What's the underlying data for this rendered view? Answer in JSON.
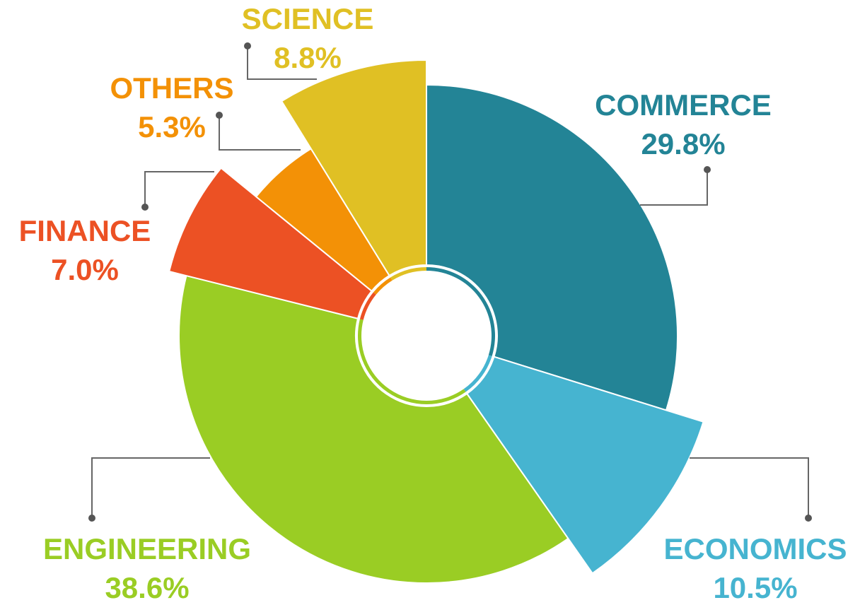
{
  "chart_data": {
    "type": "pie",
    "categories": [
      "COMMERCE",
      "ECONOMICS",
      "ENGINEERING",
      "FINANCE",
      "OTHERS",
      "SCIENCE"
    ],
    "values": [
      29.8,
      10.5,
      38.6,
      7.0,
      5.3,
      8.8
    ],
    "value_labels": [
      "29.8%",
      "10.5%",
      "38.6%",
      "7.0%",
      "5.3%",
      "8.8%"
    ],
    "colors": [
      "#238496",
      "#46b4d0",
      "#9acd24",
      "#ec5124",
      "#f39106",
      "#e0c024"
    ]
  }
}
